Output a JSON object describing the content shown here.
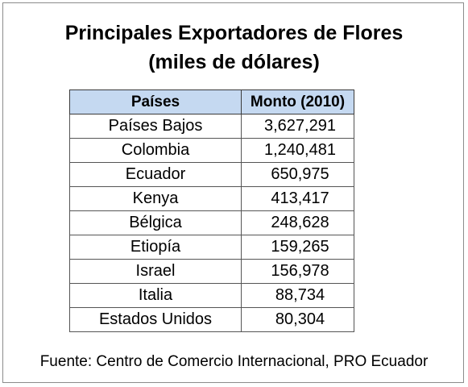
{
  "title": {
    "line1": "Principales Exportadores de Flores",
    "line2": "(miles de dólares)"
  },
  "table": {
    "headers": [
      "Países",
      "Monto (2010)"
    ],
    "rows": [
      {
        "country": "Países Bajos",
        "amount": "3,627,291"
      },
      {
        "country": "Colombia",
        "amount": "1,240,481"
      },
      {
        "country": "Ecuador",
        "amount": "650,975"
      },
      {
        "country": "Kenya",
        "amount": "413,417"
      },
      {
        "country": "Bélgica",
        "amount": "248,628"
      },
      {
        "country": "Etiopía",
        "amount": "159,265"
      },
      {
        "country": "Israel",
        "amount": "156,978"
      },
      {
        "country": "Italia",
        "amount": "88,734"
      },
      {
        "country": "Estados Unidos",
        "amount": "80,304"
      }
    ]
  },
  "source": "Fuente: Centro de Comercio Internacional, PRO Ecuador",
  "colors": {
    "header_background": "#c5d9f1",
    "border": "#555555"
  }
}
